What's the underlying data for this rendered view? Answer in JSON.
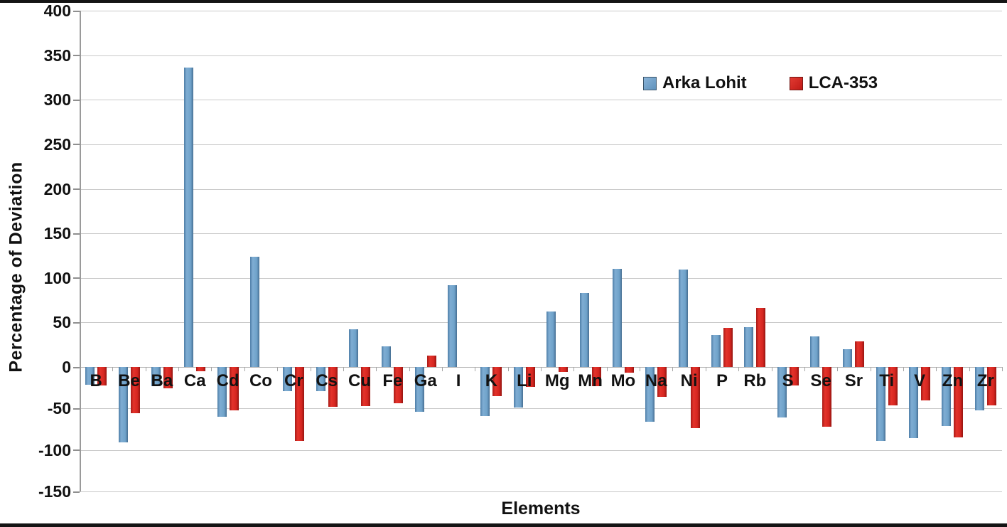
{
  "figure": {
    "xlabel": "Elements",
    "ylabel": "Percentage of Deviation"
  },
  "chart_data": {
    "type": "bar",
    "title": "",
    "xlabel": "Elements",
    "ylabel": "Percentage of Deviation",
    "ylim": [
      -150,
      400
    ],
    "ytick_step": 50,
    "grid": true,
    "legend_position": "top-right",
    "categories": [
      "B",
      "Be",
      "Ba",
      "Ca",
      "Cd",
      "Co",
      "Cr",
      "Cs",
      "Cu",
      "Fe",
      "Ga",
      "I",
      "K",
      "Li",
      "Mg",
      "Mn",
      "Mo",
      "Na",
      "Ni",
      "P",
      "Rb",
      "S",
      "Se",
      "Sr",
      "Ti",
      "V",
      "Zn",
      "Zr"
    ],
    "series": [
      {
        "name": "Arka Lohit",
        "color": "#6C9CC4",
        "values": [
          -21,
          -91,
          -23,
          336,
          -60,
          124,
          -29,
          -29,
          42,
          23,
          -54,
          92,
          -59,
          -49,
          62,
          83,
          110,
          -66,
          109,
          36,
          45,
          -61,
          34,
          20,
          -89,
          -86,
          -71,
          -52
        ]
      },
      {
        "name": "LCA-353",
        "color": "#D62B27",
        "values": [
          -22,
          -56,
          -26,
          -5,
          -52,
          0,
          -89,
          -48,
          -47,
          -44,
          13,
          0,
          -35,
          -24,
          -6,
          -23,
          -7,
          -36,
          -74,
          44,
          66,
          -22,
          -72,
          29,
          -46,
          -40,
          -85,
          -46
        ]
      }
    ]
  }
}
